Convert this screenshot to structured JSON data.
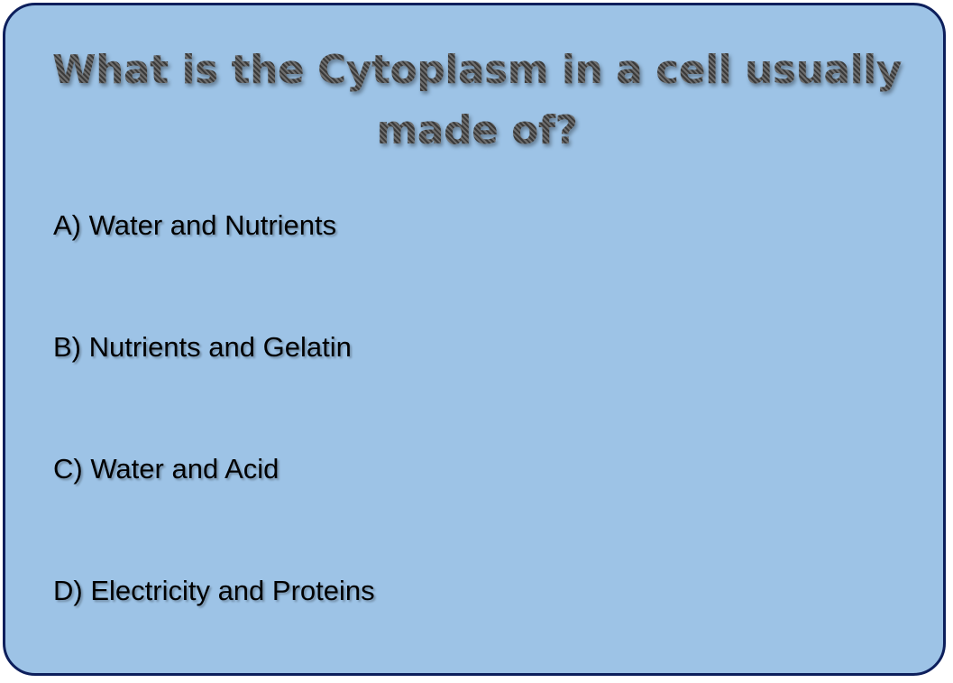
{
  "slide": {
    "background_color": "#9dc3e6",
    "border_color": "#0d1f5c",
    "title": "What is the Cytoplasm in a cell usually made of?",
    "options": [
      {
        "label": "A) Water and Nutrients"
      },
      {
        "label": "B) Nutrients and Gelatin"
      },
      {
        "label": "C) Water and Acid"
      },
      {
        "label": "D) Electricity and Proteins"
      }
    ]
  }
}
